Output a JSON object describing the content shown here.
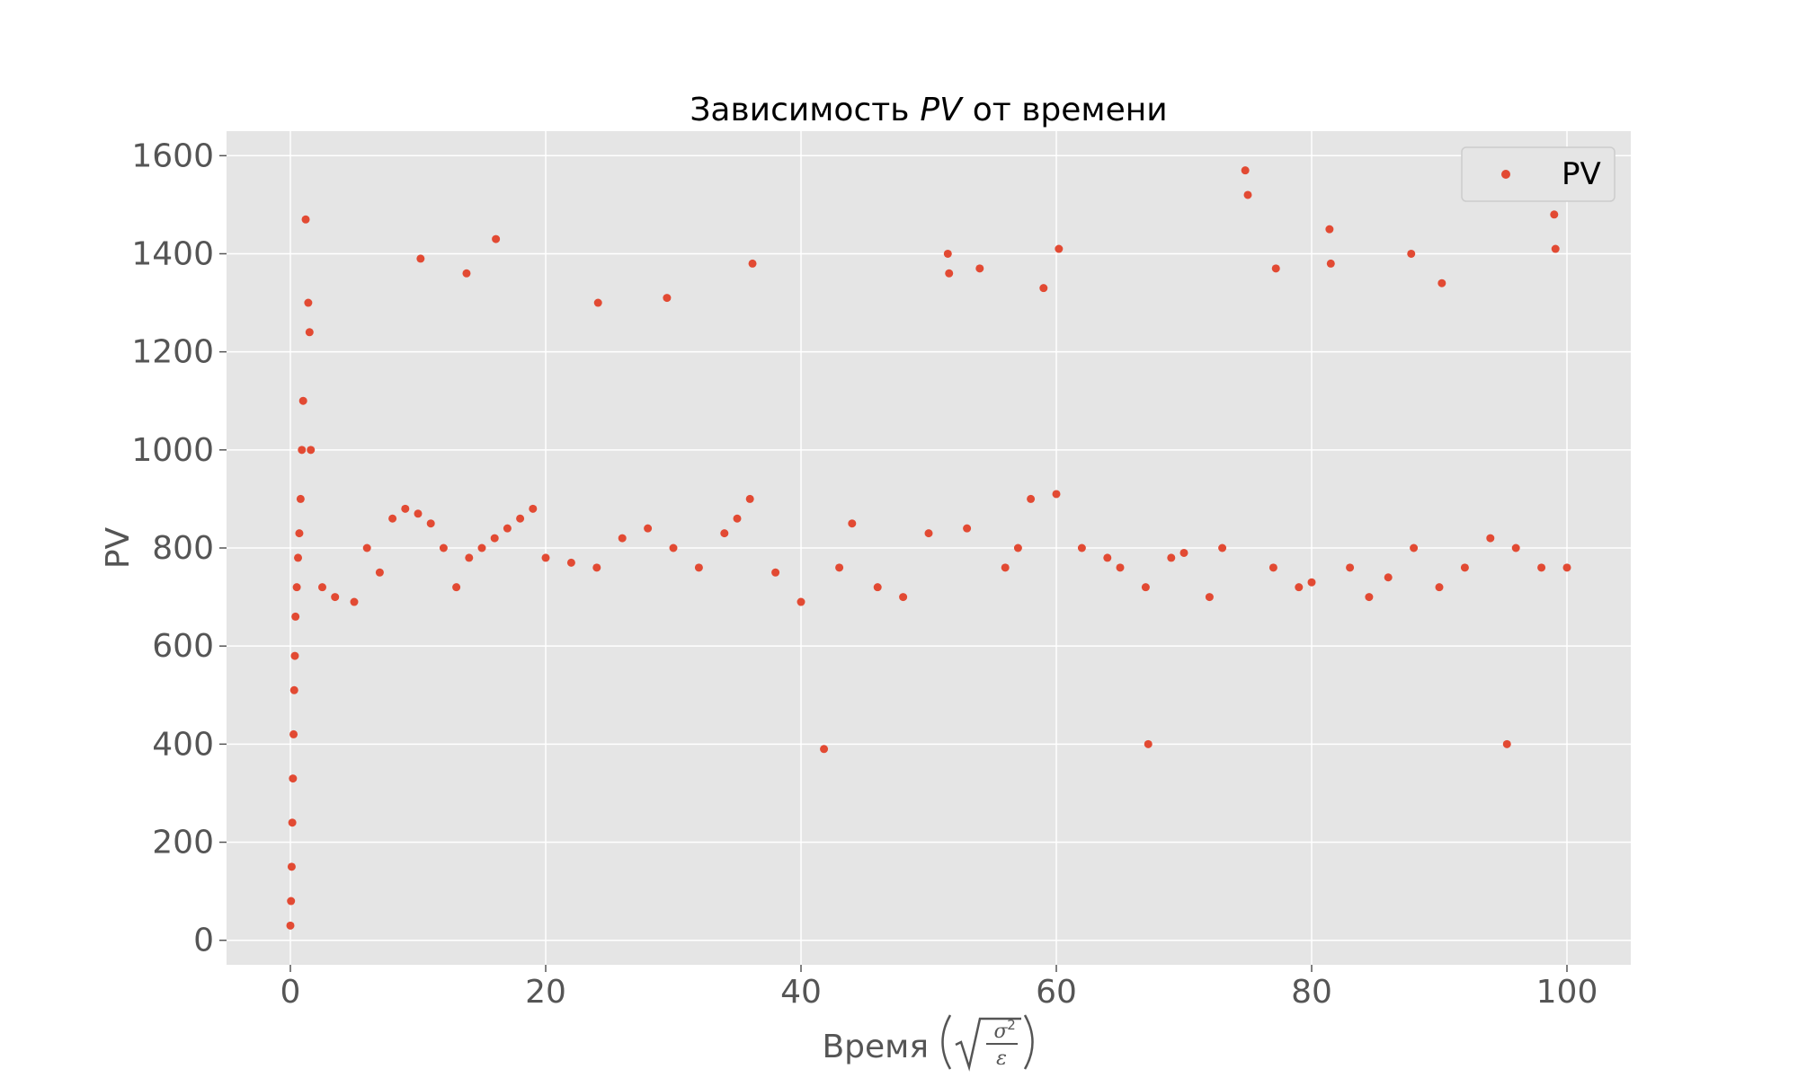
{
  "chart_data": {
    "type": "scatter",
    "title_prefix": "Зависимость",
    "title_var": "PV",
    "title_suffix": "от времени",
    "xlabel_text": "Время",
    "ylabel": "PV",
    "xlim": [
      -5,
      105
    ],
    "ylim": [
      -50,
      1650
    ],
    "x_ticks": [
      0,
      20,
      40,
      60,
      80,
      100
    ],
    "y_ticks": [
      0,
      200,
      400,
      600,
      800,
      1000,
      1200,
      1400,
      1600
    ],
    "legend_position": "top-right",
    "grid": true,
    "colors": {
      "point": "#E24A33",
      "plot_bg": "#E5E5E5",
      "grid": "#FFFFFF",
      "tick": "#555555"
    },
    "series": [
      {
        "name": "PV",
        "x": [
          0.0,
          0.05,
          0.1,
          0.15,
          0.2,
          0.25,
          0.3,
          0.35,
          0.4,
          0.5,
          0.6,
          0.7,
          0.8,
          0.9,
          1.0,
          1.2,
          1.4,
          1.5,
          1.6,
          2.5,
          3.5,
          5,
          6,
          7,
          8,
          9,
          10,
          10.2,
          11,
          12,
          13,
          13.8,
          14,
          15,
          16,
          16.1,
          17,
          18,
          19,
          20,
          22,
          24,
          24.1,
          26,
          28,
          29.5,
          30,
          32,
          34,
          35,
          36,
          36.2,
          38,
          40,
          41.8,
          43,
          44,
          46,
          48,
          50,
          51.5,
          51.6,
          53,
          54,
          56,
          57,
          58,
          59,
          60,
          60.2,
          62,
          64,
          65,
          67,
          67.2,
          69,
          70,
          72,
          73,
          74.8,
          75,
          77,
          77.2,
          79,
          80,
          81.4,
          81.5,
          83,
          84.5,
          86,
          87.8,
          88,
          90,
          90.2,
          92,
          94,
          95.3,
          96,
          98,
          99,
          99.1,
          100
        ],
        "values": [
          30,
          80,
          150,
          240,
          330,
          420,
          510,
          580,
          660,
          720,
          780,
          830,
          900,
          1000,
          1100,
          1470,
          1300,
          1240,
          1000,
          720,
          700,
          690,
          800,
          750,
          860,
          880,
          870,
          1390,
          850,
          800,
          720,
          1360,
          780,
          800,
          820,
          1430,
          840,
          860,
          880,
          780,
          770,
          760,
          1300,
          820,
          840,
          1310,
          800,
          760,
          830,
          860,
          900,
          1380,
          750,
          690,
          390,
          760,
          850,
          720,
          700,
          830,
          1400,
          1360,
          840,
          1370,
          760,
          800,
          900,
          1330,
          910,
          1410,
          800,
          780,
          760,
          720,
          400,
          780,
          790,
          700,
          800,
          1570,
          1520,
          760,
          1370,
          720,
          730,
          1450,
          1380,
          760,
          700,
          740,
          1400,
          800,
          720,
          1340,
          760,
          820,
          400,
          800,
          760,
          1480,
          1410,
          760
        ]
      }
    ]
  }
}
